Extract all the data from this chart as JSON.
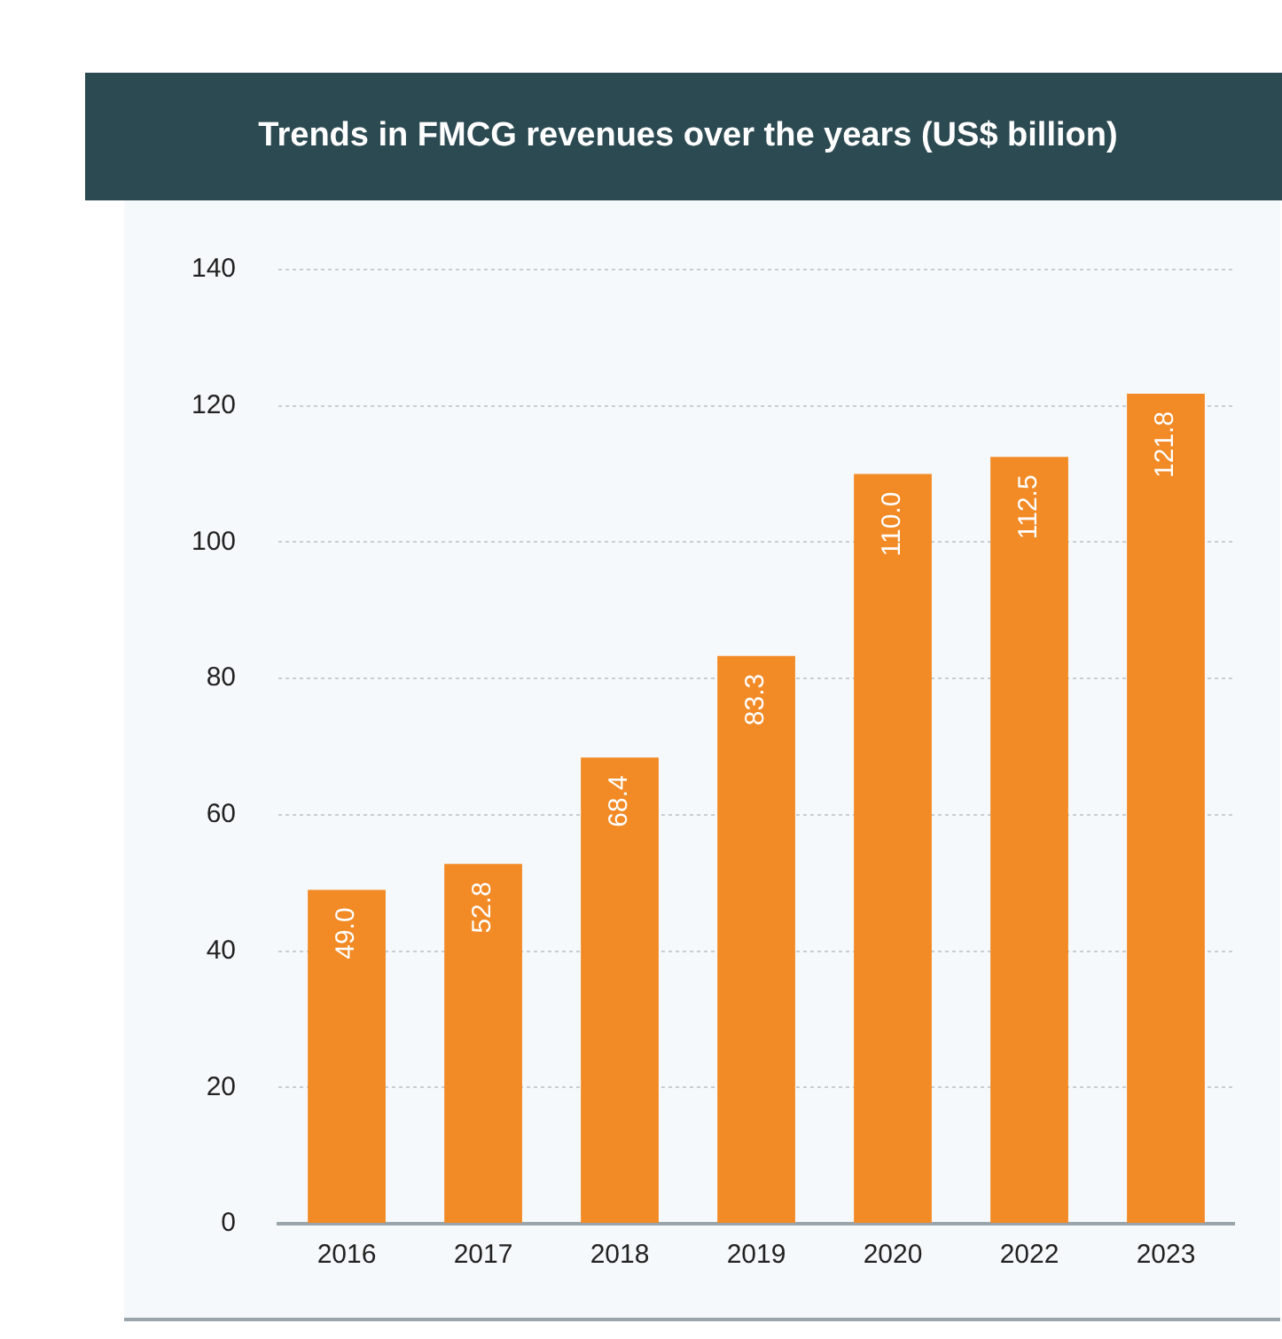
{
  "chart_data": {
    "type": "bar",
    "title": "Trends in FMCG revenues over the years (US$ billion)",
    "categories": [
      "2016",
      "2017",
      "2018",
      "2019",
      "2020",
      "2022",
      "2023"
    ],
    "values": [
      49.0,
      52.8,
      68.4,
      83.3,
      110.0,
      112.5,
      121.8
    ],
    "color": "#f28a26",
    "ylim": [
      0,
      140
    ],
    "yticks": [
      0,
      20,
      40,
      60,
      80,
      100,
      120,
      140
    ],
    "value_labels": [
      "49.0",
      "52.8",
      "68.4",
      "83.3",
      "110.0",
      "112.5",
      "121.8"
    ],
    "grid": "y"
  }
}
